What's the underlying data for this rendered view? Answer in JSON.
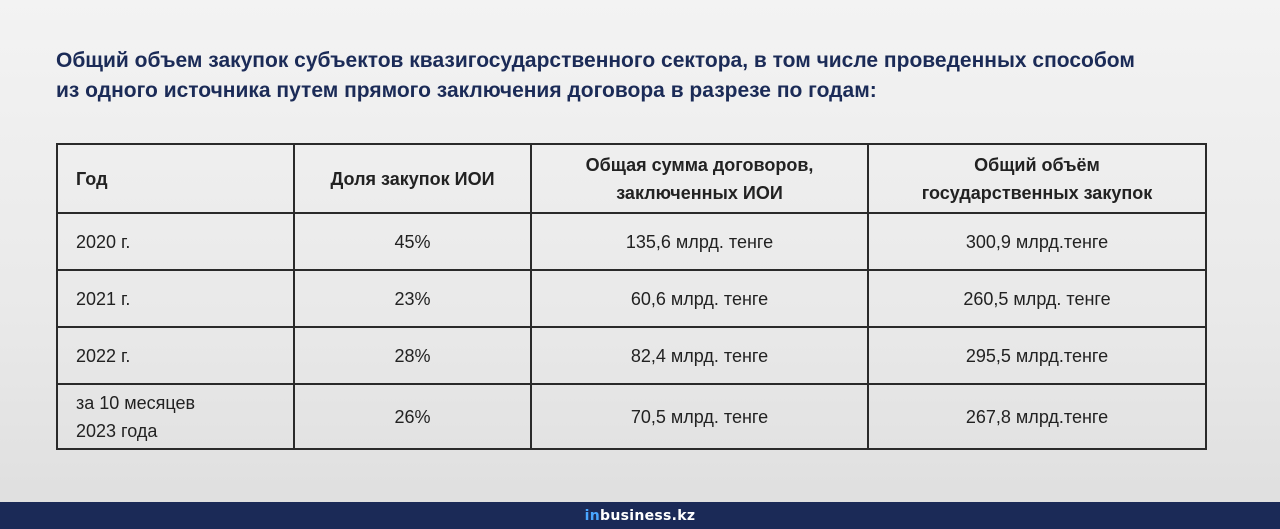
{
  "title": {
    "line1": "Общий объем закупок субъектов квазигосударственного сектора, в том числе проведенных способом",
    "line2": "из одного источника путем прямого заключения договора в разрезе по годам:"
  },
  "table": {
    "headers": {
      "year": "Год",
      "share": "Доля закупок ИОИ",
      "total_line1": "Общая сумма договоров,",
      "total_line2": "заключенных ИОИ",
      "state_line1": "Общий объём",
      "state_line2": "государственных закупок"
    },
    "rows": [
      {
        "year_line1": "2020 г.",
        "year_line2": "",
        "share": "45%",
        "total": "135,6 млрд. тенге",
        "state": "300,9 млрд.тенге"
      },
      {
        "year_line1": "2021 г.",
        "year_line2": "",
        "share": "23%",
        "total": "60,6 млрд. тенге",
        "state": "260,5 млрд. тенге"
      },
      {
        "year_line1": "2022 г.",
        "year_line2": "",
        "share": "28%",
        "total": "82,4 млрд. тенге",
        "state": "295,5 млрд.тенге"
      },
      {
        "year_line1": "за 10 месяцев",
        "year_line2": "2023 года",
        "share": "26%",
        "total": "70,5 млрд. тенге",
        "state": "267,8 млрд.тенге"
      }
    ]
  },
  "footer": {
    "logo_prefix": "in",
    "logo_main": "business.kz",
    "colors": {
      "bar": "#1b2a57",
      "accent": "#49a6ff"
    }
  }
}
